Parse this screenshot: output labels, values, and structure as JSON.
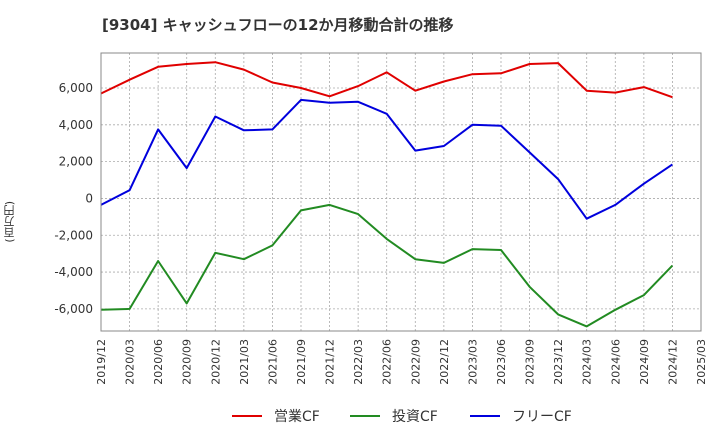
{
  "chart_data": {
    "type": "line",
    "title": "[9304]  キャッシュフローの12か月移動合計の推移",
    "xlabel": "",
    "ylabel": "(百万円)",
    "ylim": [
      -7200,
      7900
    ],
    "yticks": [
      -6000,
      -4000,
      -2000,
      0,
      2000,
      4000,
      6000
    ],
    "ytick_labels": [
      "-6,000",
      "-4,000",
      "-2,000",
      "0",
      "2,000",
      "4,000",
      "6,000"
    ],
    "grid": true,
    "legend_position": "bottom",
    "x": [
      "2019/12",
      "2020/03",
      "2020/06",
      "2020/09",
      "2020/12",
      "2021/03",
      "2021/06",
      "2021/09",
      "2021/12",
      "2022/03",
      "2022/06",
      "2022/09",
      "2022/12",
      "2023/03",
      "2023/06",
      "2023/09",
      "2023/12",
      "2024/03",
      "2024/06",
      "2024/09",
      "2024/12",
      "2025/03"
    ],
    "series": [
      {
        "name": "営業CF",
        "color": "#e00000",
        "values": [
          5700,
          6450,
          7150,
          7300,
          7400,
          7000,
          6300,
          6000,
          5550,
          6100,
          6850,
          5850,
          6350,
          6750,
          6800,
          7300,
          7350,
          5850,
          5750,
          6050,
          5500,
          null
        ]
      },
      {
        "name": "投資CF",
        "color": "#228b22",
        "values": [
          -6050,
          -6000,
          -3400,
          -5700,
          -2950,
          -3300,
          -2550,
          -650,
          -350,
          -850,
          -2200,
          -3300,
          -3500,
          -2750,
          -2800,
          -4800,
          -6300,
          -6950,
          -6050,
          -5250,
          -3650,
          null
        ]
      },
      {
        "name": "フリーCF",
        "color": "#0000dd",
        "values": [
          -350,
          450,
          3750,
          1650,
          4450,
          3700,
          3750,
          5350,
          5200,
          5250,
          4600,
          2600,
          2850,
          4000,
          3950,
          2500,
          1050,
          -1100,
          -350,
          800,
          1850,
          null
        ]
      }
    ]
  }
}
